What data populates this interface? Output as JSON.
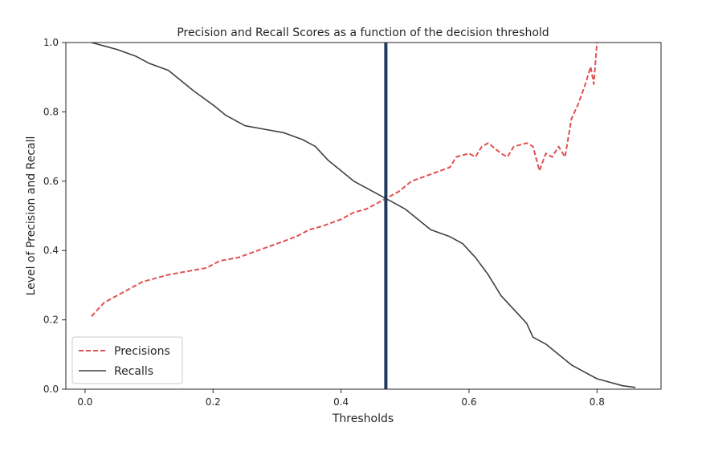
{
  "chart_data": {
    "type": "line",
    "title": "Precision and Recall Scores as a function of the decision threshold",
    "xlabel": "Thresholds",
    "ylabel": "Level of Precision and Recall",
    "xlim": [
      -0.03,
      0.9
    ],
    "ylim": [
      0,
      1.0
    ],
    "xticks": [
      0.0,
      0.2,
      0.4,
      0.6,
      0.8
    ],
    "yticks": [
      0.0,
      0.2,
      0.4,
      0.6,
      0.8,
      1.0
    ],
    "xtick_labels": [
      "0.0",
      "0.2",
      "0.4",
      "0.6",
      "0.8"
    ],
    "ytick_labels": [
      "0.0",
      "0.2",
      "0.4",
      "0.6",
      "0.8",
      "1.0"
    ],
    "grid": false,
    "legend_position": "lower-left",
    "vline": {
      "x": 0.47,
      "color": "#1f3a5f"
    },
    "series": [
      {
        "name": "Precisions",
        "color": "#e05050",
        "style": "dashed",
        "points": [
          [
            0.01,
            0.21
          ],
          [
            0.02,
            0.23
          ],
          [
            0.03,
            0.25
          ],
          [
            0.05,
            0.27
          ],
          [
            0.07,
            0.29
          ],
          [
            0.09,
            0.31
          ],
          [
            0.11,
            0.32
          ],
          [
            0.13,
            0.33
          ],
          [
            0.16,
            0.34
          ],
          [
            0.19,
            0.35
          ],
          [
            0.21,
            0.37
          ],
          [
            0.24,
            0.38
          ],
          [
            0.27,
            0.4
          ],
          [
            0.3,
            0.42
          ],
          [
            0.33,
            0.44
          ],
          [
            0.35,
            0.46
          ],
          [
            0.37,
            0.47
          ],
          [
            0.4,
            0.49
          ],
          [
            0.42,
            0.51
          ],
          [
            0.44,
            0.52
          ],
          [
            0.46,
            0.54
          ],
          [
            0.47,
            0.55
          ],
          [
            0.49,
            0.57
          ],
          [
            0.51,
            0.6
          ],
          [
            0.54,
            0.62
          ],
          [
            0.57,
            0.64
          ],
          [
            0.58,
            0.67
          ],
          [
            0.6,
            0.68
          ],
          [
            0.61,
            0.67
          ],
          [
            0.62,
            0.7
          ],
          [
            0.63,
            0.71
          ],
          [
            0.65,
            0.68
          ],
          [
            0.66,
            0.67
          ],
          [
            0.67,
            0.7
          ],
          [
            0.69,
            0.71
          ],
          [
            0.7,
            0.7
          ],
          [
            0.71,
            0.63
          ],
          [
            0.72,
            0.68
          ],
          [
            0.73,
            0.67
          ],
          [
            0.74,
            0.7
          ],
          [
            0.75,
            0.67
          ],
          [
            0.76,
            0.78
          ],
          [
            0.77,
            0.82
          ],
          [
            0.78,
            0.87
          ],
          [
            0.79,
            0.93
          ],
          [
            0.795,
            0.88
          ],
          [
            0.8,
            1.0
          ]
        ]
      },
      {
        "name": "Recalls",
        "color": "#404040",
        "style": "solid",
        "points": [
          [
            0.01,
            1.0
          ],
          [
            0.03,
            0.99
          ],
          [
            0.05,
            0.98
          ],
          [
            0.08,
            0.96
          ],
          [
            0.1,
            0.94
          ],
          [
            0.13,
            0.92
          ],
          [
            0.15,
            0.89
          ],
          [
            0.17,
            0.86
          ],
          [
            0.2,
            0.82
          ],
          [
            0.22,
            0.79
          ],
          [
            0.25,
            0.76
          ],
          [
            0.28,
            0.75
          ],
          [
            0.31,
            0.74
          ],
          [
            0.34,
            0.72
          ],
          [
            0.36,
            0.7
          ],
          [
            0.38,
            0.66
          ],
          [
            0.4,
            0.63
          ],
          [
            0.42,
            0.6
          ],
          [
            0.44,
            0.58
          ],
          [
            0.46,
            0.56
          ],
          [
            0.47,
            0.55
          ],
          [
            0.48,
            0.54
          ],
          [
            0.5,
            0.52
          ],
          [
            0.52,
            0.49
          ],
          [
            0.54,
            0.46
          ],
          [
            0.57,
            0.44
          ],
          [
            0.59,
            0.42
          ],
          [
            0.61,
            0.38
          ],
          [
            0.63,
            0.33
          ],
          [
            0.65,
            0.27
          ],
          [
            0.67,
            0.23
          ],
          [
            0.69,
            0.19
          ],
          [
            0.7,
            0.15
          ],
          [
            0.72,
            0.13
          ],
          [
            0.74,
            0.1
          ],
          [
            0.76,
            0.07
          ],
          [
            0.78,
            0.05
          ],
          [
            0.8,
            0.03
          ],
          [
            0.82,
            0.02
          ],
          [
            0.84,
            0.01
          ],
          [
            0.86,
            0.005
          ]
        ]
      }
    ]
  }
}
